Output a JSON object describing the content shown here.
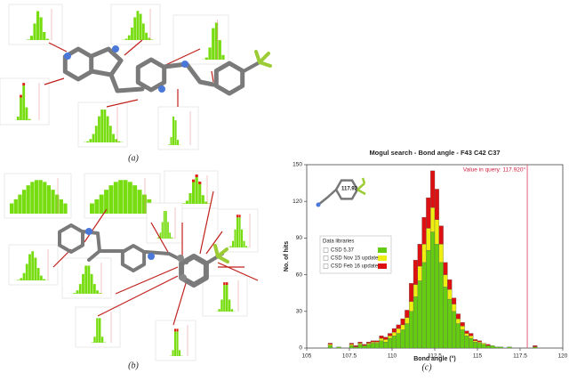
{
  "panel_labels": [
    "(a)",
    "(b)"
  ],
  "chart_data": {
    "type": "histogram",
    "caption": "(c)",
    "title": "Mogul search - Bond angle - F43 C42 C37",
    "xlabel": "Bond angle (°)",
    "ylabel": "No. of hits",
    "xlim": [
      105,
      120
    ],
    "xticks": [
      105,
      107.5,
      110,
      112.5,
      115,
      117.5,
      120
    ],
    "ylim": [
      0,
      150
    ],
    "yticks": [
      0,
      30,
      60,
      90,
      120,
      150
    ],
    "query_value": 117.92,
    "query_label": "Value in query: 117.920°",
    "inset_label": "117.92",
    "legend_title": "Data libraries",
    "bins": [
      106,
      106.25,
      106.5,
      106.75,
      107,
      107.25,
      107.5,
      107.75,
      108,
      108.25,
      108.5,
      108.75,
      109,
      109.25,
      109.5,
      109.75,
      110,
      110.25,
      110.5,
      110.75,
      111,
      111.25,
      111.5,
      111.75,
      112,
      112.25,
      112.5,
      112.75,
      113,
      113.25,
      113.5,
      113.75,
      114,
      114.25,
      114.5,
      114.75,
      115,
      115.25,
      115.5,
      115.75,
      116,
      116.25,
      116.5,
      116.75,
      117,
      117.25,
      117.5,
      117.75,
      118,
      118.25,
      118.5,
      118.75,
      119
    ],
    "series": [
      {
        "name": "CSD 5.37",
        "color": "#66cc11",
        "values": [
          0,
          2,
          0,
          1,
          0,
          0,
          2,
          1,
          3,
          2,
          3,
          4,
          4,
          6,
          5,
          8,
          10,
          12,
          15,
          20,
          30,
          42,
          55,
          70,
          80,
          95,
          85,
          70,
          50,
          40,
          30,
          20,
          15,
          10,
          8,
          5,
          4,
          3,
          2,
          2,
          1,
          1,
          0,
          1,
          0,
          0,
          0,
          0,
          0,
          1,
          0,
          0
        ]
      },
      {
        "name": "CSD Nov 15 update",
        "color": "#eeee11",
        "values": [
          0,
          1,
          0,
          0,
          0,
          0,
          1,
          0,
          1,
          0,
          1,
          1,
          1,
          2,
          2,
          2,
          3,
          4,
          4,
          5,
          8,
          10,
          12,
          15,
          18,
          20,
          20,
          15,
          10,
          8,
          6,
          4,
          3,
          2,
          2,
          1,
          1,
          1,
          0,
          0,
          0,
          0,
          0,
          0,
          0,
          0,
          0,
          0,
          0,
          0,
          0,
          0
        ]
      },
      {
        "name": "CSD Feb 16 update",
        "color": "#dd1111",
        "values": [
          0,
          1,
          0,
          0,
          0,
          0,
          1,
          1,
          1,
          1,
          1,
          1,
          1,
          2,
          2,
          2,
          3,
          3,
          5,
          6,
          15,
          20,
          18,
          22,
          25,
          30,
          25,
          15,
          10,
          8,
          5,
          4,
          3,
          2,
          2,
          1,
          1,
          0,
          1,
          0,
          0,
          0,
          0,
          0,
          0,
          0,
          0,
          0,
          0,
          1,
          0,
          0
        ]
      }
    ]
  }
}
